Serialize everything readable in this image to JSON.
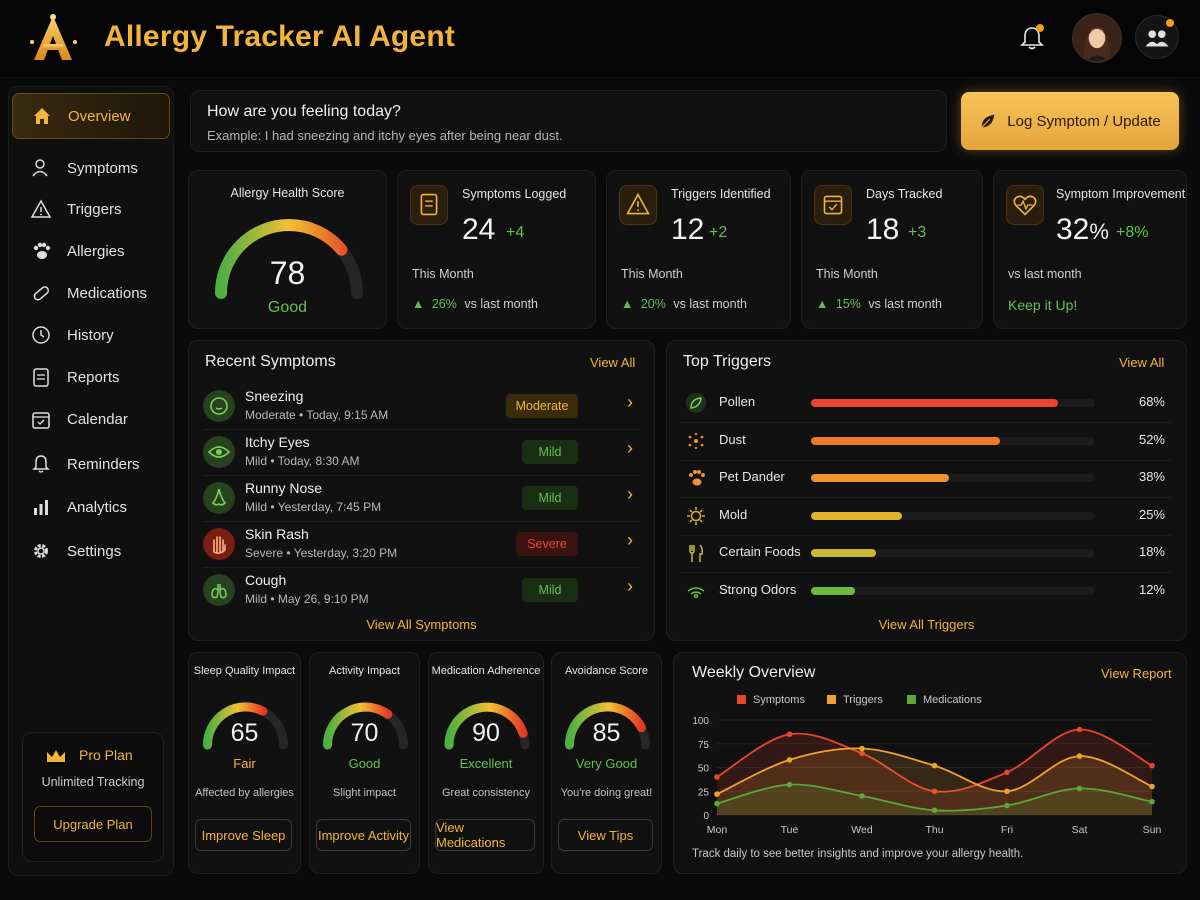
{
  "app": {
    "title": "Allergy Tracker AI Agent"
  },
  "sidebar": {
    "items": [
      {
        "label": "Overview"
      },
      {
        "label": "Symptoms"
      },
      {
        "label": "Triggers"
      },
      {
        "label": "Allergies"
      },
      {
        "label": "Medications"
      },
      {
        "label": "History"
      },
      {
        "label": "Reports"
      },
      {
        "label": "Calendar"
      },
      {
        "label": "Reminders"
      },
      {
        "label": "Analytics"
      },
      {
        "label": "Settings"
      }
    ],
    "pro": {
      "title": "Pro Plan",
      "subtitle": "Unlimited Tracking",
      "button": "Upgrade Plan"
    }
  },
  "prompt": {
    "question": "How are you feeling today?",
    "example": "Example: I had sneezing and itchy eyes after being near dust."
  },
  "log_button": "Log Symptom / Update",
  "health_score": {
    "title": "Allergy Health Score",
    "value": "78",
    "label": "Good",
    "level": 78
  },
  "stats": [
    {
      "label": "Symptoms Logged",
      "value": "24",
      "delta": "+4",
      "sub": "This Month",
      "foot_pct": "26%",
      "foot_text": "vs last month"
    },
    {
      "label": "Triggers Identified",
      "value": "12",
      "delta": "+2",
      "sub": "This Month",
      "foot_pct": "20%",
      "foot_text": "vs last month"
    },
    {
      "label": "Days Tracked",
      "value": "18",
      "delta": "+3",
      "sub": "This Month",
      "foot_pct": "15%",
      "foot_text": "vs last month"
    },
    {
      "label": "Symptom Improvement",
      "value": "32",
      "unit": "%",
      "delta": "+8%",
      "sub": "vs last month",
      "foot_text": "Keep it Up!"
    }
  ],
  "recent_symptoms": {
    "title": "Recent Symptoms",
    "view_all": "View All",
    "footer": "View All Symptoms",
    "items": [
      {
        "name": "Sneezing",
        "severity": "Moderate",
        "time": "Today, 9:15 AM",
        "badge": "Moderate"
      },
      {
        "name": "Itchy Eyes",
        "severity": "Mild",
        "time": "Today, 8:30 AM",
        "badge": "Mild"
      },
      {
        "name": "Runny Nose",
        "severity": "Mild",
        "time": "Yesterday, 7:45 PM",
        "badge": "Mild"
      },
      {
        "name": "Skin Rash",
        "severity": "Severe",
        "time": "Yesterday, 3:20 PM",
        "badge": "Severe"
      },
      {
        "name": "Cough",
        "severity": "Mild",
        "time": "May 26, 9:10 PM",
        "badge": "Mild"
      }
    ]
  },
  "top_triggers": {
    "title": "Top Triggers",
    "view_all": "View All",
    "footer": "View All Triggers",
    "items": [
      {
        "name": "Pollen",
        "pct": "68%",
        "value": 68,
        "color": "#e8452c"
      },
      {
        "name": "Dust",
        "pct": "52%",
        "value": 52,
        "color": "#ee7b2a"
      },
      {
        "name": "Pet Dander",
        "pct": "38%",
        "value": 38,
        "color": "#f0952e"
      },
      {
        "name": "Mold",
        "pct": "25%",
        "value": 25,
        "color": "#e0b22e"
      },
      {
        "name": "Certain Foods",
        "pct": "18%",
        "value": 18,
        "color": "#c9b935"
      },
      {
        "name": "Strong Odors",
        "pct": "12%",
        "value": 12,
        "color": "#6fbb3e"
      }
    ]
  },
  "impact_gauges": [
    {
      "title": "Sleep Quality Impact",
      "value": "65",
      "level": 65,
      "label": "Fair",
      "label_color": "#f3b43c",
      "desc": "Affected by allergies",
      "button": "Improve Sleep"
    },
    {
      "title": "Activity Impact",
      "value": "70",
      "level": 70,
      "label": "Good",
      "label_color": "#62c14e",
      "desc": "Slight impact",
      "button": "Improve Activity"
    },
    {
      "title": "Medication Adherence",
      "value": "90",
      "level": 90,
      "label": "Excellent",
      "label_color": "#62c14e",
      "desc": "Great consistency",
      "button": "View Medications"
    },
    {
      "title": "Avoidance Score",
      "value": "85",
      "level": 85,
      "label": "Very Good",
      "label_color": "#62c14e",
      "desc": "You're doing great!",
      "button": "View Tips"
    }
  ],
  "weekly": {
    "title": "Weekly Overview",
    "view_report": "View Report",
    "footer": "Track daily to see better insights and improve your allergy health."
  },
  "chart_data": {
    "type": "area",
    "title": "Weekly Overview",
    "categories": [
      "Mon",
      "Tue",
      "Wed",
      "Thu",
      "Fri",
      "Sat",
      "Sun"
    ],
    "ylim": [
      0,
      100
    ],
    "yticks": [
      0,
      25,
      50,
      75,
      100
    ],
    "grid": true,
    "legend": "top",
    "series": [
      {
        "name": "Symptoms",
        "color": "#e8452c",
        "values": [
          40,
          85,
          65,
          25,
          45,
          90,
          52
        ]
      },
      {
        "name": "Triggers",
        "color": "#f0a22e",
        "values": [
          22,
          58,
          70,
          52,
          25,
          62,
          30
        ]
      },
      {
        "name": "Medications",
        "color": "#5aa83a",
        "values": [
          12,
          32,
          20,
          5,
          10,
          28,
          14
        ]
      }
    ]
  }
}
